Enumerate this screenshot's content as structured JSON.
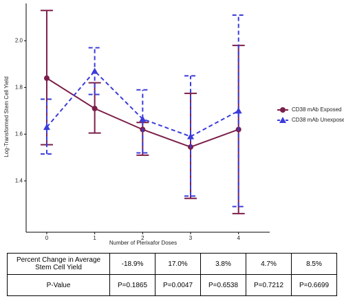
{
  "chart_data": {
    "type": "line",
    "y_label": "Log-Transformed Stem Cell Yield",
    "x_label": "Number of Plerixafor Doses",
    "x": [
      0,
      1,
      2,
      3,
      4
    ],
    "xlim": [
      -0.43,
      4.65
    ],
    "xticks": [
      0,
      1,
      2,
      3,
      4
    ],
    "ylim": [
      1.18,
      2.16
    ],
    "yticks": [
      1.4,
      1.6,
      1.8,
      {
        "value": 2.0,
        "label": "2.0"
      }
    ],
    "grid": false,
    "legend": "right",
    "series": [
      {
        "name": "CD38 mAb Exposed",
        "color": "#7b1e4a",
        "marker": "circle",
        "dash": false,
        "values": [
          1.84,
          1.71,
          1.62,
          1.545,
          1.62
        ],
        "lower": [
          1.555,
          1.605,
          1.51,
          1.325,
          1.26
        ],
        "upper": [
          2.13,
          1.82,
          1.65,
          1.775,
          1.98
        ]
      },
      {
        "name": "CD38 mAb Unexposed",
        "color": "#3b3bdb",
        "marker": "triangle",
        "dash": true,
        "values": [
          1.63,
          1.87,
          1.665,
          1.59,
          1.7
        ],
        "lower": [
          1.515,
          1.77,
          1.52,
          1.335,
          1.29
        ],
        "upper": [
          1.75,
          1.97,
          1.79,
          1.85,
          2.11
        ]
      }
    ]
  },
  "table": {
    "rows": [
      [
        "Percent Change in Average Stem Cell Yield",
        "-18.9%",
        "17.0%",
        "3.8%",
        "4.7%",
        "8.5%"
      ],
      [
        "P-Value",
        "P=0.1865",
        "P=0.0047",
        "P=0.6538",
        "P=0.7212",
        "P=0.6699"
      ]
    ]
  }
}
